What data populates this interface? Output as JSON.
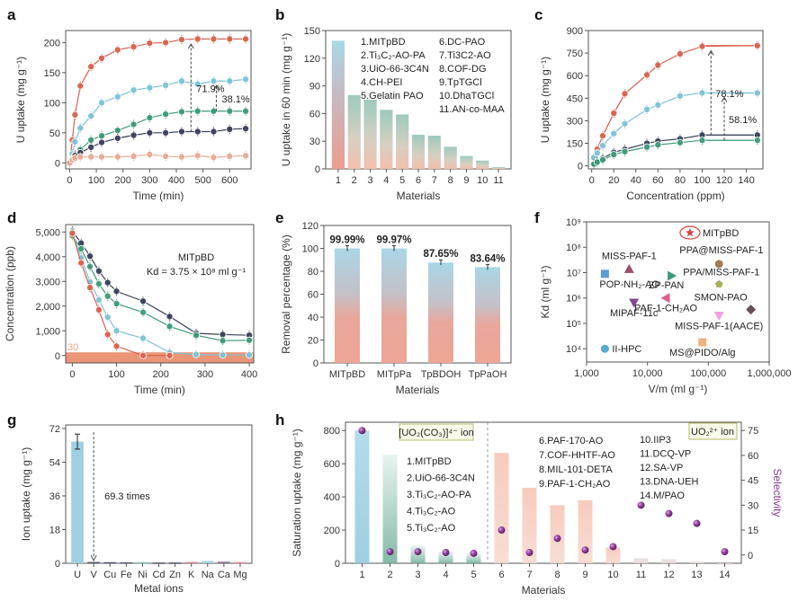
{
  "chart_data": [
    {
      "panel": "a",
      "type": "line",
      "xlabel": "Time (min)",
      "ylabel": "U uptake (mg g⁻¹)",
      "xlim": [
        -15,
        680
      ],
      "ylim": [
        -10,
        220
      ],
      "xticks": [
        0,
        100,
        200,
        300,
        400,
        500,
        600
      ],
      "yticks": [
        0,
        50,
        100,
        150,
        200
      ],
      "x": [
        0,
        10,
        20,
        40,
        80,
        120,
        180,
        240,
        300,
        360,
        420,
        480,
        540,
        600,
        660
      ],
      "series": [
        {
          "name": "red",
          "color": "#d9624f",
          "values": [
            0,
            38,
            80,
            128,
            160,
            174,
            188,
            193,
            199,
            200,
            205,
            206,
            206,
            206,
            206
          ]
        },
        {
          "name": "light-blue",
          "color": "#7cc3d6",
          "values": [
            0,
            15,
            35,
            58,
            78,
            100,
            110,
            121,
            125,
            129,
            136,
            131,
            136,
            136,
            139
          ]
        },
        {
          "name": "green",
          "color": "#3e9a7a",
          "values": [
            0,
            8,
            14,
            22,
            38,
            45,
            54,
            64,
            75,
            81,
            85,
            86,
            86,
            86,
            86
          ]
        },
        {
          "name": "navy",
          "color": "#3a4158",
          "values": [
            0,
            6,
            12,
            17,
            26,
            34,
            41,
            46,
            50,
            50,
            52,
            52,
            52,
            56,
            57
          ]
        },
        {
          "name": "salmon",
          "color": "#e9a995",
          "values": [
            0,
            5,
            8,
            10,
            10,
            10,
            10,
            11,
            14,
            11,
            10,
            12,
            9,
            11,
            12
          ]
        }
      ],
      "annotations": [
        {
          "text": "71.9%",
          "x": 455,
          "from": 52,
          "to": 205
        },
        {
          "text": "38.1%",
          "x": 550,
          "from": 86,
          "to": 136
        }
      ]
    },
    {
      "panel": "b",
      "type": "bar",
      "xlabel": "Materials",
      "ylabel": "U uptake in 60 min (mg g⁻¹)",
      "ylim": [
        0,
        150
      ],
      "yticks": [
        0,
        30,
        60,
        90,
        120,
        150
      ],
      "categories": [
        "1",
        "2",
        "3",
        "4",
        "5",
        "6",
        "7",
        "8",
        "9",
        "10",
        "11"
      ],
      "values": [
        139,
        80,
        75,
        64,
        59,
        37,
        36,
        24,
        14,
        9,
        2
      ],
      "legend_col1": [
        "1.MITpBD",
        "2.Ti₃C₂-AO-PA",
        "3.UiO-66-3C4N",
        "4.CH-PEI",
        "5.Gelatin PAO"
      ],
      "legend_col2": [
        "6.DC-PAO",
        "7.Ti3C2-AO",
        "8.COF-DG",
        "9.TpTGCl",
        "10.DhaTGCl",
        "11.AN-co-MAA"
      ]
    },
    {
      "panel": "c",
      "type": "line",
      "xlabel": "Concentration (ppm)",
      "ylabel": "U uptake (mg g⁻¹)",
      "xlim": [
        -3,
        155
      ],
      "ylim": [
        -20,
        900
      ],
      "xticks": [
        0,
        20,
        40,
        60,
        80,
        100,
        120,
        140
      ],
      "yticks": [
        0,
        150,
        300,
        450,
        600,
        750,
        900
      ],
      "x": [
        2,
        5,
        10,
        20,
        30,
        50,
        60,
        80,
        100,
        150
      ],
      "series": [
        {
          "name": "red",
          "color": "#d9624f",
          "values": [
            60,
            110,
            200,
            350,
            480,
            605,
            670,
            745,
            795,
            800
          ]
        },
        {
          "name": "light-blue",
          "color": "#7cc3d6",
          "values": [
            55,
            85,
            135,
            215,
            280,
            375,
            405,
            465,
            485,
            485
          ]
        },
        {
          "name": "navy",
          "color": "#3a4158",
          "values": [
            15,
            30,
            50,
            90,
            110,
            150,
            165,
            180,
            205,
            205
          ]
        },
        {
          "name": "green",
          "color": "#3e9a7a",
          "values": [
            12,
            25,
            40,
            75,
            95,
            125,
            140,
            155,
            170,
            170
          ]
        }
      ],
      "annotations": [
        {
          "text": "78.1%",
          "x": 108,
          "from": 205,
          "to": 795
        },
        {
          "text": "58.1%",
          "x": 120,
          "from": 170,
          "to": 485
        }
      ]
    },
    {
      "panel": "d",
      "type": "line",
      "xlabel": "Time (min)",
      "ylabel": "Concentration (ppb)",
      "xlim": [
        -15,
        410
      ],
      "ylim": [
        -300,
        5300
      ],
      "xticks": [
        0,
        100,
        200,
        300,
        400
      ],
      "yticks": [
        0,
        1000,
        2000,
        3000,
        4000,
        5000
      ],
      "ytick_labels": [
        "0",
        "1,000",
        "2,000",
        "3,000",
        "4,000",
        "5,000"
      ],
      "band_label": "30",
      "annotation_line1": "MITpBD",
      "annotation_line2": "Kd = 3.75 × 10⁸ ml g⁻¹",
      "series": [
        {
          "name": "navy",
          "color": "#3a4158",
          "x": [
            0,
            20,
            40,
            60,
            80,
            100,
            160,
            220,
            280,
            340,
            400
          ],
          "values": [
            5050,
            4550,
            4020,
            3420,
            2950,
            2600,
            2200,
            1580,
            900,
            850,
            820
          ]
        },
        {
          "name": "green",
          "color": "#3e9a7a",
          "x": [
            0,
            20,
            40,
            60,
            80,
            100,
            160,
            220,
            280,
            340,
            400
          ],
          "values": [
            4850,
            4320,
            3600,
            2900,
            2400,
            2100,
            1750,
            1180,
            820,
            600,
            620
          ]
        },
        {
          "name": "light-blue",
          "color": "#7cc3d6",
          "x": [
            0,
            20,
            40,
            60,
            80,
            100,
            160,
            220,
            280,
            340,
            400
          ],
          "values": [
            5000,
            3950,
            2980,
            2250,
            1550,
            1000,
            700,
            120,
            40,
            20,
            20
          ]
        },
        {
          "name": "red",
          "color": "#d9624f",
          "x": [
            0,
            20,
            40,
            60,
            80,
            100,
            160,
            220
          ],
          "values": [
            4950,
            3750,
            2750,
            1850,
            850,
            380,
            0,
            0
          ]
        }
      ]
    },
    {
      "panel": "e",
      "type": "bar",
      "xlabel": "Materials",
      "ylabel": "Removal percentage (%)",
      "ylim": [
        0,
        120
      ],
      "yticks": [
        0,
        20,
        40,
        60,
        80,
        100,
        120
      ],
      "categories": [
        "MITpBD",
        "MITpPa",
        "TpBDOH",
        "TpPaOH"
      ],
      "values": [
        99.99,
        99.97,
        87.65,
        83.64
      ],
      "labels": [
        "99.99%",
        "99.97%",
        "87.65%",
        "83.64%"
      ]
    },
    {
      "panel": "f",
      "type": "scatter",
      "xscale": "log",
      "yscale": "log",
      "xlabel": "V/m (ml g⁻¹)",
      "ylabel": "Kd (ml g⁻¹)",
      "xlim": [
        1000,
        1000000
      ],
      "ylim": [
        3000,
        1000000000
      ],
      "xticks": [
        1000,
        10000,
        100000,
        1000000
      ],
      "xtick_labels": [
        "1,000",
        "10,000",
        "100,000",
        "1,000,000"
      ],
      "yticks": [
        10000,
        100000,
        1000000,
        10000000,
        100000000,
        1000000000
      ],
      "ytick_labels": [
        "10⁴",
        "10⁵",
        "10⁶",
        "10⁷",
        "10⁸",
        "10⁹"
      ],
      "points": [
        {
          "label": "MITpBD",
          "x": 50000,
          "y": 375000000,
          "marker": "star",
          "color": "#d9433c"
        },
        {
          "label": "PPA@MISS-PAF-1",
          "x": 150000,
          "y": 22000000,
          "marker": "circle",
          "color": "#a97a4f"
        },
        {
          "label": "MISS-PAF-1",
          "x": 5000,
          "y": 14000000,
          "marker": "triangle-up",
          "color": "#9a4d6a"
        },
        {
          "label": "POP-NH₂-AO",
          "x": 2000,
          "y": 9000000,
          "marker": "square",
          "color": "#5a9fd4"
        },
        {
          "label": "ZP-PAN",
          "x": 25000,
          "y": 7500000,
          "marker": "triangle-right",
          "color": "#3e9a7a"
        },
        {
          "label": "PPA/MISS-PAF-1",
          "x": 150000,
          "y": 3500000,
          "marker": "pentagon",
          "color": "#a8b05a"
        },
        {
          "label": "PAF-1-CH₂AO",
          "x": 20000,
          "y": 1000000,
          "marker": "triangle-left",
          "color": "#d9608a"
        },
        {
          "label": "MIPAF-11c",
          "x": 6000,
          "y": 650000,
          "marker": "triangle-down",
          "color": "#7d4a8a"
        },
        {
          "label": "SMON-PAO",
          "x": 500000,
          "y": 350000,
          "marker": "diamond",
          "color": "#6a4d5a"
        },
        {
          "label": "MISS-PAF-1(AACE)",
          "x": 150000,
          "y": 200000,
          "marker": "triangle-down",
          "color": "#f0a0e0"
        },
        {
          "label": "MS@PIDO/Alg",
          "x": 80000,
          "y": 18000,
          "marker": "square",
          "color": "#f0b080"
        },
        {
          "label": "II-HPC",
          "x": 2000,
          "y": 10000,
          "marker": "circle",
          "color": "#5aa8d4"
        }
      ]
    },
    {
      "panel": "g",
      "type": "bar",
      "xlabel": "Metal ions",
      "ylabel": "Ion uptake (mg g⁻¹)",
      "ylim": [
        0,
        72
      ],
      "yticks": [
        0,
        18,
        36,
        54,
        72
      ],
      "categories": [
        "U",
        "V",
        "Cu",
        "Fe",
        "Ni",
        "Cd",
        "Zn",
        "K",
        "Na",
        "Ca",
        "Mg"
      ],
      "values": [
        65,
        0.7,
        0.6,
        0.5,
        0.6,
        0.4,
        0.4,
        0.7,
        1.3,
        0.9,
        0.6
      ],
      "colors": [
        "#9fd0e2",
        "#3a4158",
        "#3a4158",
        "#3a4158",
        "#7cc3b6",
        "#3a4158",
        "#3a4158",
        "#e08090",
        "#9fd0e2",
        "#8a6d8a",
        "#e08090"
      ],
      "annotation": "69.3 times"
    },
    {
      "panel": "h",
      "type": "bar",
      "xlabel": "Materials",
      "ylabel": "Saturation uptake (mg g⁻¹)",
      "y2label": "Selectivity",
      "ylim": [
        0,
        850
      ],
      "yticks": [
        0,
        200,
        400,
        600,
        800
      ],
      "y2lim": [
        -5,
        80
      ],
      "y2ticks": [
        0,
        15,
        30,
        45,
        60,
        75
      ],
      "categories": [
        "1",
        "2",
        "3",
        "4",
        "5",
        "6",
        "7",
        "8",
        "9",
        "10",
        "11",
        "12",
        "13",
        "14"
      ],
      "values": [
        800,
        655,
        105,
        70,
        60,
        665,
        455,
        350,
        380,
        95,
        30,
        25,
        10,
        0
      ],
      "selectivity": [
        75,
        2,
        2,
        1.5,
        1,
        15,
        1.5,
        10,
        3,
        5,
        30,
        25,
        19,
        2
      ],
      "group1_label": "[UO₂(CO₃)]⁴⁻ ion",
      "group2_label": "UO₂²⁺ ion",
      "legend_col1": [
        "1.MITpBD",
        "2.UiO-66-3C4N",
        "3.Ti₃C₂-AO-PA",
        "4.Ti₃C₂-AO",
        "5.Ti₃C₂-AO"
      ],
      "legend_col2": [
        "6.PAF-170-AO",
        "7.COF-HHTF-AO",
        "8.MIL-101-DETA",
        "9.PAF-1-CH₂AO"
      ],
      "legend_col3": [
        "10.IIP3",
        "11.DCQ-VP",
        "12.SA-VP",
        "13.DNA-UEH",
        "14.M/PAO"
      ]
    }
  ],
  "panel_labels": [
    "a",
    "b",
    "c",
    "d",
    "e",
    "f",
    "g",
    "h"
  ]
}
